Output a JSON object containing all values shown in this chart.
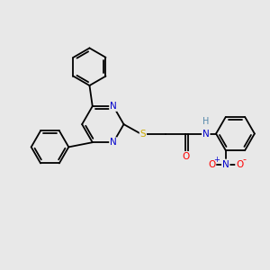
{
  "background_color": "#e8e8e8",
  "bond_color": "#000000",
  "atom_colors": {
    "N": "#0000cc",
    "O": "#ff0000",
    "S": "#ccaa00",
    "H": "#5588aa",
    "C": "#000000"
  },
  "figsize": [
    3.0,
    3.0
  ],
  "dpi": 100,
  "xlim": [
    0,
    10
  ],
  "ylim": [
    0,
    10
  ]
}
